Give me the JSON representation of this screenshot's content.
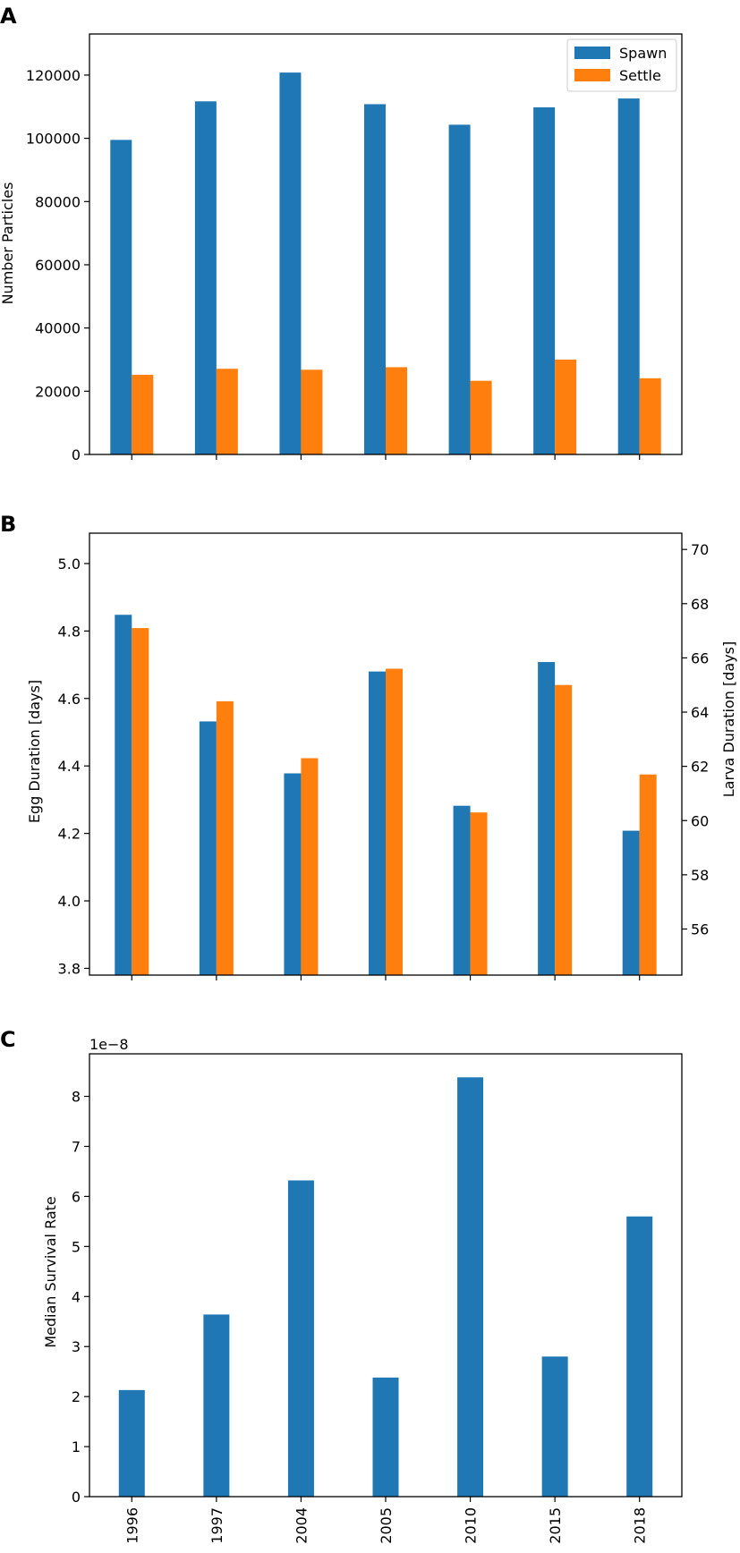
{
  "colors": {
    "spawn": "#1f77b4",
    "settle": "#ff7f0e",
    "axis": "#000000"
  },
  "panel_labels": [
    "A",
    "B",
    "C"
  ],
  "chart_data": [
    {
      "id": "A",
      "type": "bar",
      "categories": [
        "1996",
        "1997",
        "2004",
        "2005",
        "2010",
        "2015",
        "2018"
      ],
      "series": [
        {
          "name": "Spawn",
          "values": [
            99500,
            111700,
            120800,
            110800,
            104300,
            109800,
            112600
          ]
        },
        {
          "name": "Settle",
          "values": [
            25200,
            27100,
            26800,
            27600,
            23300,
            30000,
            24100
          ]
        }
      ],
      "ylabel": "Number Particles",
      "ylim": [
        0,
        133000
      ],
      "yticks": [
        0,
        20000,
        40000,
        60000,
        80000,
        100000,
        120000
      ],
      "legend": {
        "position": "top-right",
        "entries": [
          "Spawn",
          "Settle"
        ]
      },
      "show_xtick_labels": false
    },
    {
      "id": "B",
      "type": "bar",
      "categories": [
        "1996",
        "1997",
        "2004",
        "2005",
        "2010",
        "2015",
        "2018"
      ],
      "series": [
        {
          "name": "Egg Duration",
          "axis": "left",
          "values": [
            4.848,
            4.532,
            4.378,
            4.68,
            4.282,
            4.708,
            4.208
          ]
        },
        {
          "name": "Larva Duration",
          "axis": "right",
          "values": [
            67.1,
            64.4,
            62.3,
            65.6,
            60.3,
            65.0,
            61.7
          ]
        }
      ],
      "ylabel_left": "Egg Duration [days]",
      "ylabel_right": "Larva Duration [days]",
      "ylim_left": [
        3.78,
        5.09
      ],
      "ylim_right": [
        54.3,
        70.6
      ],
      "yticks_left": [
        "3.8",
        "4.0",
        "4.2",
        "4.4",
        "4.6",
        "4.8",
        "5.0"
      ],
      "yticks_right": [
        "56",
        "58",
        "60",
        "62",
        "64",
        "66",
        "68",
        "70"
      ],
      "show_xtick_labels": false
    },
    {
      "id": "C",
      "type": "bar",
      "categories": [
        "1996",
        "1997",
        "2004",
        "2005",
        "2010",
        "2015",
        "2018"
      ],
      "series": [
        {
          "name": "Median Survival Rate",
          "values": [
            2.13,
            3.64,
            6.32,
            2.38,
            8.38,
            2.8,
            5.6
          ]
        }
      ],
      "offset_text": "1e−8",
      "ylabel": "Median Survival Rate",
      "ylim": [
        0,
        8.85
      ],
      "yticks": [
        0,
        1,
        2,
        3,
        4,
        5,
        6,
        7,
        8
      ],
      "show_xtick_labels": true
    }
  ]
}
